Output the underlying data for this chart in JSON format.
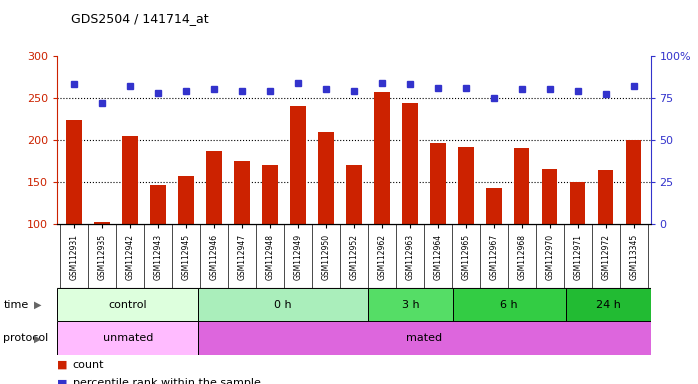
{
  "title": "GDS2504 / 141714_at",
  "samples": [
    "GSM112931",
    "GSM112935",
    "GSM112942",
    "GSM112943",
    "GSM112945",
    "GSM112946",
    "GSM112947",
    "GSM112948",
    "GSM112949",
    "GSM112950",
    "GSM112952",
    "GSM112962",
    "GSM112963",
    "GSM112964",
    "GSM112965",
    "GSM112967",
    "GSM112968",
    "GSM112970",
    "GSM112971",
    "GSM112972",
    "GSM113345"
  ],
  "counts": [
    224,
    103,
    205,
    147,
    157,
    187,
    175,
    170,
    240,
    210,
    170,
    257,
    244,
    196,
    192,
    143,
    191,
    165,
    150,
    164,
    200
  ],
  "percentiles": [
    83,
    72,
    82,
    78,
    79,
    80,
    79,
    79,
    84,
    80,
    79,
    84,
    83,
    81,
    81,
    75,
    80,
    80,
    79,
    77,
    82
  ],
  "ylim_left": [
    100,
    300
  ],
  "ylim_right": [
    0,
    100
  ],
  "yticks_left": [
    100,
    150,
    200,
    250,
    300
  ],
  "yticks_right": [
    0,
    25,
    50,
    75,
    100
  ],
  "bar_color": "#cc2200",
  "dot_color": "#3333cc",
  "time_groups": [
    {
      "label": "control",
      "start": 0,
      "end": 4,
      "color": "#ddffdd"
    },
    {
      "label": "0 h",
      "start": 5,
      "end": 10,
      "color": "#aaeebb"
    },
    {
      "label": "3 h",
      "start": 11,
      "end": 13,
      "color": "#55dd66"
    },
    {
      "label": "6 h",
      "start": 14,
      "end": 17,
      "color": "#33cc44"
    },
    {
      "label": "24 h",
      "start": 18,
      "end": 20,
      "color": "#22bb33"
    }
  ],
  "protocol_groups": [
    {
      "label": "unmated",
      "start": 0,
      "end": 4,
      "color": "#ffbbff"
    },
    {
      "label": "mated",
      "start": 5,
      "end": 20,
      "color": "#dd66dd"
    }
  ],
  "bg_color": "#ffffff",
  "legend_count_label": "count",
  "legend_pct_label": "percentile rank within the sample",
  "label_row_color": "#dddddd"
}
